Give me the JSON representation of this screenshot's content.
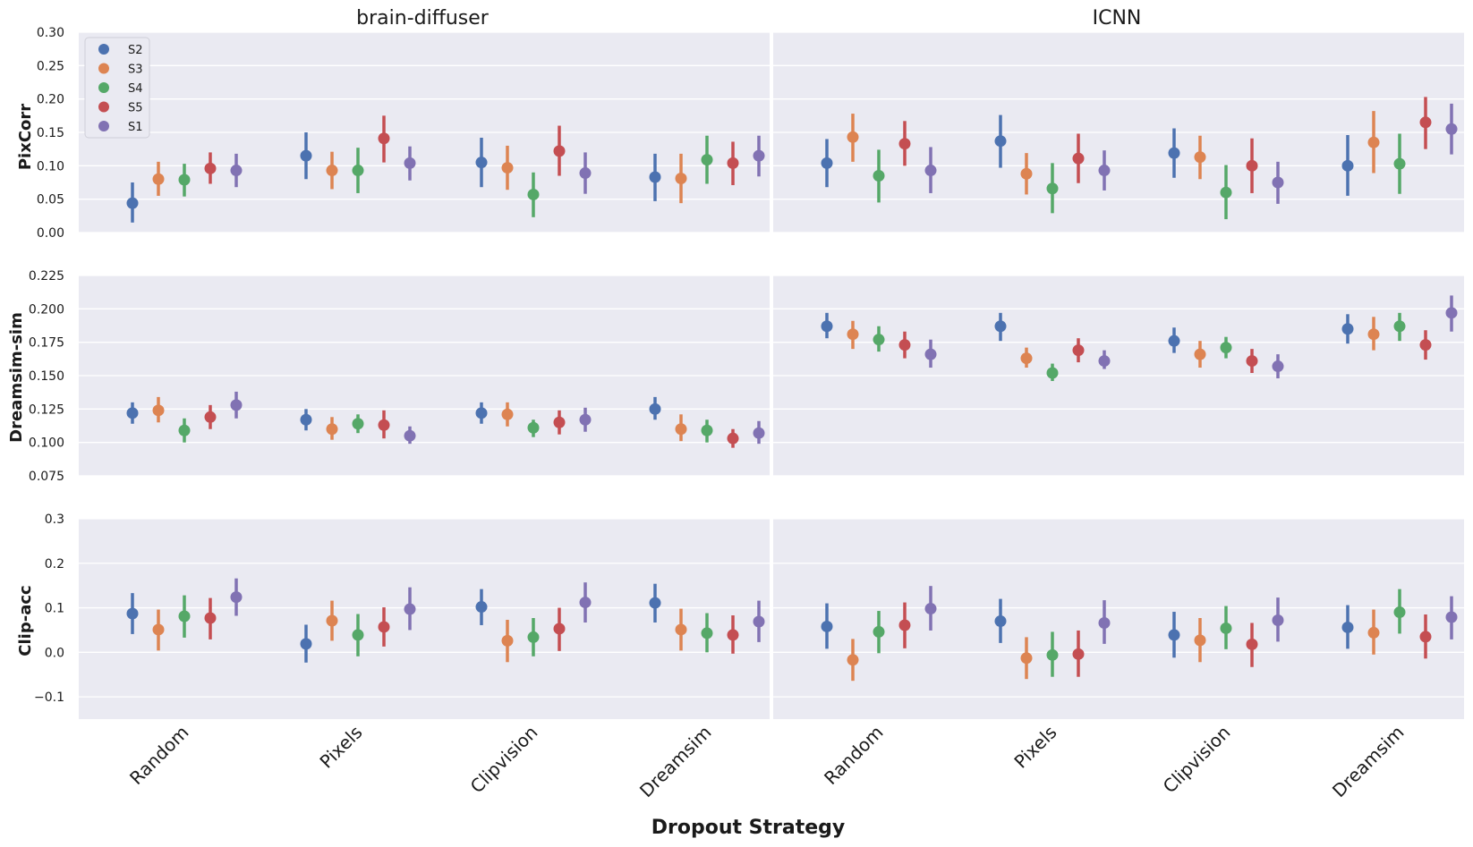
{
  "chart_data": {
    "type": "scatter",
    "subtype": "point-plot with error bars (faceted grid)",
    "columns": [
      "brain-diffuser",
      "ICNN"
    ],
    "categories": [
      "Random",
      "Pixels",
      "Clipvision",
      "Dreamsim"
    ],
    "xlabel": "Dropout Strategy",
    "legend": {
      "placement": "top-left",
      "entries": [
        "S2",
        "S3",
        "S4",
        "S5",
        "S1"
      ]
    },
    "series_colors": {
      "S2": "#4c72b0",
      "S3": "#dd8452",
      "S4": "#55a868",
      "S5": "#c44e52",
      "S1": "#8172b3"
    },
    "panel_background": "#eaeaf2",
    "grid": true,
    "rows": [
      {
        "metric": "PixCorr",
        "ylim": [
          0.0,
          0.3
        ],
        "yticks": [
          "0.00",
          "0.05",
          "0.10",
          "0.15",
          "0.20",
          "0.25",
          "0.30"
        ],
        "ytick_values": [
          0.0,
          0.05,
          0.1,
          0.15,
          0.2,
          0.25,
          0.3
        ],
        "data": {
          "brain-diffuser": {
            "S2": [
              [
                0.044,
                0.015,
                0.075
              ],
              [
                0.115,
                0.08,
                0.15
              ],
              [
                0.105,
                0.068,
                0.142
              ],
              [
                0.083,
                0.047,
                0.118
              ]
            ],
            "S3": [
              [
                0.08,
                0.055,
                0.106
              ],
              [
                0.093,
                0.065,
                0.121
              ],
              [
                0.097,
                0.064,
                0.13
              ],
              [
                0.081,
                0.044,
                0.118
              ]
            ],
            "S4": [
              [
                0.079,
                0.054,
                0.103
              ],
              [
                0.093,
                0.059,
                0.127
              ],
              [
                0.057,
                0.023,
                0.09
              ],
              [
                0.109,
                0.073,
                0.145
              ]
            ],
            "S5": [
              [
                0.096,
                0.073,
                0.12
              ],
              [
                0.141,
                0.105,
                0.175
              ],
              [
                0.122,
                0.085,
                0.16
              ],
              [
                0.104,
                0.071,
                0.136
              ]
            ],
            "S1": [
              [
                0.093,
                0.068,
                0.118
              ],
              [
                0.104,
                0.078,
                0.129
              ],
              [
                0.089,
                0.058,
                0.12
              ],
              [
                0.115,
                0.084,
                0.145
              ]
            ]
          },
          "ICNN": {
            "S2": [
              [
                0.104,
                0.068,
                0.14
              ],
              [
                0.137,
                0.097,
                0.176
              ],
              [
                0.119,
                0.082,
                0.156
              ],
              [
                0.1,
                0.055,
                0.146
              ]
            ],
            "S3": [
              [
                0.143,
                0.106,
                0.178
              ],
              [
                0.088,
                0.057,
                0.119
              ],
              [
                0.113,
                0.08,
                0.145
              ],
              [
                0.135,
                0.089,
                0.182
              ]
            ],
            "S4": [
              [
                0.085,
                0.045,
                0.124
              ],
              [
                0.066,
                0.029,
                0.104
              ],
              [
                0.06,
                0.02,
                0.101
              ],
              [
                0.103,
                0.058,
                0.148
              ]
            ],
            "S5": [
              [
                0.133,
                0.1,
                0.167
              ],
              [
                0.111,
                0.074,
                0.148
              ],
              [
                0.1,
                0.059,
                0.141
              ],
              [
                0.165,
                0.125,
                0.203
              ]
            ],
            "S1": [
              [
                0.093,
                0.059,
                0.128
              ],
              [
                0.093,
                0.063,
                0.123
              ],
              [
                0.075,
                0.043,
                0.106
              ],
              [
                0.155,
                0.117,
                0.193
              ]
            ]
          }
        }
      },
      {
        "metric": "Dreamsim-sim",
        "ylim": [
          0.075,
          0.225
        ],
        "yticks": [
          "0.075",
          "0.100",
          "0.125",
          "0.150",
          "0.175",
          "0.200",
          "0.225"
        ],
        "ytick_values": [
          0.075,
          0.1,
          0.125,
          0.15,
          0.175,
          0.2,
          0.225
        ],
        "data": {
          "brain-diffuser": {
            "S2": [
              [
                0.122,
                0.114,
                0.13
              ],
              [
                0.117,
                0.109,
                0.125
              ],
              [
                0.122,
                0.114,
                0.13
              ],
              [
                0.125,
                0.117,
                0.134
              ]
            ],
            "S3": [
              [
                0.124,
                0.115,
                0.134
              ],
              [
                0.11,
                0.102,
                0.119
              ],
              [
                0.121,
                0.112,
                0.13
              ],
              [
                0.11,
                0.101,
                0.121
              ]
            ],
            "S4": [
              [
                0.109,
                0.1,
                0.118
              ],
              [
                0.114,
                0.107,
                0.121
              ],
              [
                0.111,
                0.104,
                0.117
              ],
              [
                0.109,
                0.1,
                0.117
              ]
            ],
            "S5": [
              [
                0.119,
                0.11,
                0.128
              ],
              [
                0.113,
                0.103,
                0.124
              ],
              [
                0.115,
                0.106,
                0.124
              ],
              [
                0.103,
                0.096,
                0.11
              ]
            ],
            "S1": [
              [
                0.128,
                0.118,
                0.138
              ],
              [
                0.105,
                0.099,
                0.112
              ],
              [
                0.117,
                0.108,
                0.126
              ],
              [
                0.107,
                0.099,
                0.116
              ]
            ]
          },
          "ICNN": {
            "S2": [
              [
                0.187,
                0.178,
                0.197
              ],
              [
                0.187,
                0.176,
                0.197
              ],
              [
                0.176,
                0.167,
                0.186
              ],
              [
                0.185,
                0.174,
                0.196
              ]
            ],
            "S3": [
              [
                0.181,
                0.17,
                0.191
              ],
              [
                0.163,
                0.156,
                0.171
              ],
              [
                0.166,
                0.156,
                0.176
              ],
              [
                0.181,
                0.169,
                0.194
              ]
            ],
            "S4": [
              [
                0.177,
                0.168,
                0.187
              ],
              [
                0.152,
                0.146,
                0.159
              ],
              [
                0.171,
                0.163,
                0.179
              ],
              [
                0.187,
                0.176,
                0.197
              ]
            ],
            "S5": [
              [
                0.173,
                0.163,
                0.183
              ],
              [
                0.169,
                0.16,
                0.178
              ],
              [
                0.161,
                0.152,
                0.17
              ],
              [
                0.173,
                0.162,
                0.184
              ]
            ],
            "S1": [
              [
                0.166,
                0.156,
                0.177
              ],
              [
                0.161,
                0.155,
                0.169
              ],
              [
                0.157,
                0.148,
                0.166
              ],
              [
                0.197,
                0.183,
                0.21
              ]
            ]
          }
        }
      },
      {
        "metric": "Clip-acc",
        "ylim": [
          -0.15,
          0.3
        ],
        "yticks": [
          "−0.1",
          "0.0",
          "0.1",
          "0.2",
          "0.3"
        ],
        "ytick_values": [
          -0.1,
          0.0,
          0.1,
          0.2,
          0.3
        ],
        "data": {
          "brain-diffuser": {
            "S2": [
              [
                0.087,
                0.041,
                0.133
              ],
              [
                0.019,
                -0.023,
                0.062
              ],
              [
                0.102,
                0.061,
                0.142
              ],
              [
                0.111,
                0.067,
                0.154
              ]
            ],
            "S3": [
              [
                0.051,
                0.004,
                0.096
              ],
              [
                0.071,
                0.026,
                0.116
              ],
              [
                0.026,
                -0.022,
                0.073
              ],
              [
                0.051,
                0.004,
                0.098
              ]
            ],
            "S4": [
              [
                0.081,
                0.033,
                0.128
              ],
              [
                0.039,
                -0.009,
                0.086
              ],
              [
                0.034,
                -0.009,
                0.077
              ],
              [
                0.043,
                0.0,
                0.088
              ]
            ],
            "S5": [
              [
                0.077,
                0.029,
                0.122
              ],
              [
                0.057,
                0.013,
                0.101
              ],
              [
                0.053,
                0.003,
                0.1
              ],
              [
                0.039,
                -0.003,
                0.083
              ]
            ],
            "S1": [
              [
                0.124,
                0.082,
                0.166
              ],
              [
                0.097,
                0.05,
                0.146
              ],
              [
                0.112,
                0.067,
                0.157
              ],
              [
                0.069,
                0.023,
                0.116
              ]
            ]
          },
          "ICNN": {
            "S2": [
              [
                0.058,
                0.008,
                0.11
              ],
              [
                0.07,
                0.021,
                0.12
              ],
              [
                0.039,
                -0.012,
                0.091
              ],
              [
                0.056,
                0.008,
                0.106
              ]
            ],
            "S3": [
              [
                -0.017,
                -0.064,
                0.03
              ],
              [
                -0.013,
                -0.06,
                0.034
              ],
              [
                0.027,
                -0.022,
                0.077
              ],
              [
                0.044,
                -0.005,
                0.096
              ]
            ],
            "S4": [
              [
                0.046,
                -0.002,
                0.093
              ],
              [
                -0.006,
                -0.055,
                0.046
              ],
              [
                0.054,
                0.007,
                0.104
              ],
              [
                0.09,
                0.042,
                0.142
              ]
            ],
            "S5": [
              [
                0.061,
                0.009,
                0.112
              ],
              [
                -0.004,
                -0.055,
                0.049
              ],
              [
                0.018,
                -0.033,
                0.066
              ],
              [
                0.035,
                -0.014,
                0.085
              ]
            ],
            "S1": [
              [
                0.098,
                0.049,
                0.149
              ],
              [
                0.066,
                0.019,
                0.117
              ],
              [
                0.072,
                0.024,
                0.123
              ],
              [
                0.079,
                0.029,
                0.126
              ]
            ]
          }
        }
      }
    ]
  }
}
